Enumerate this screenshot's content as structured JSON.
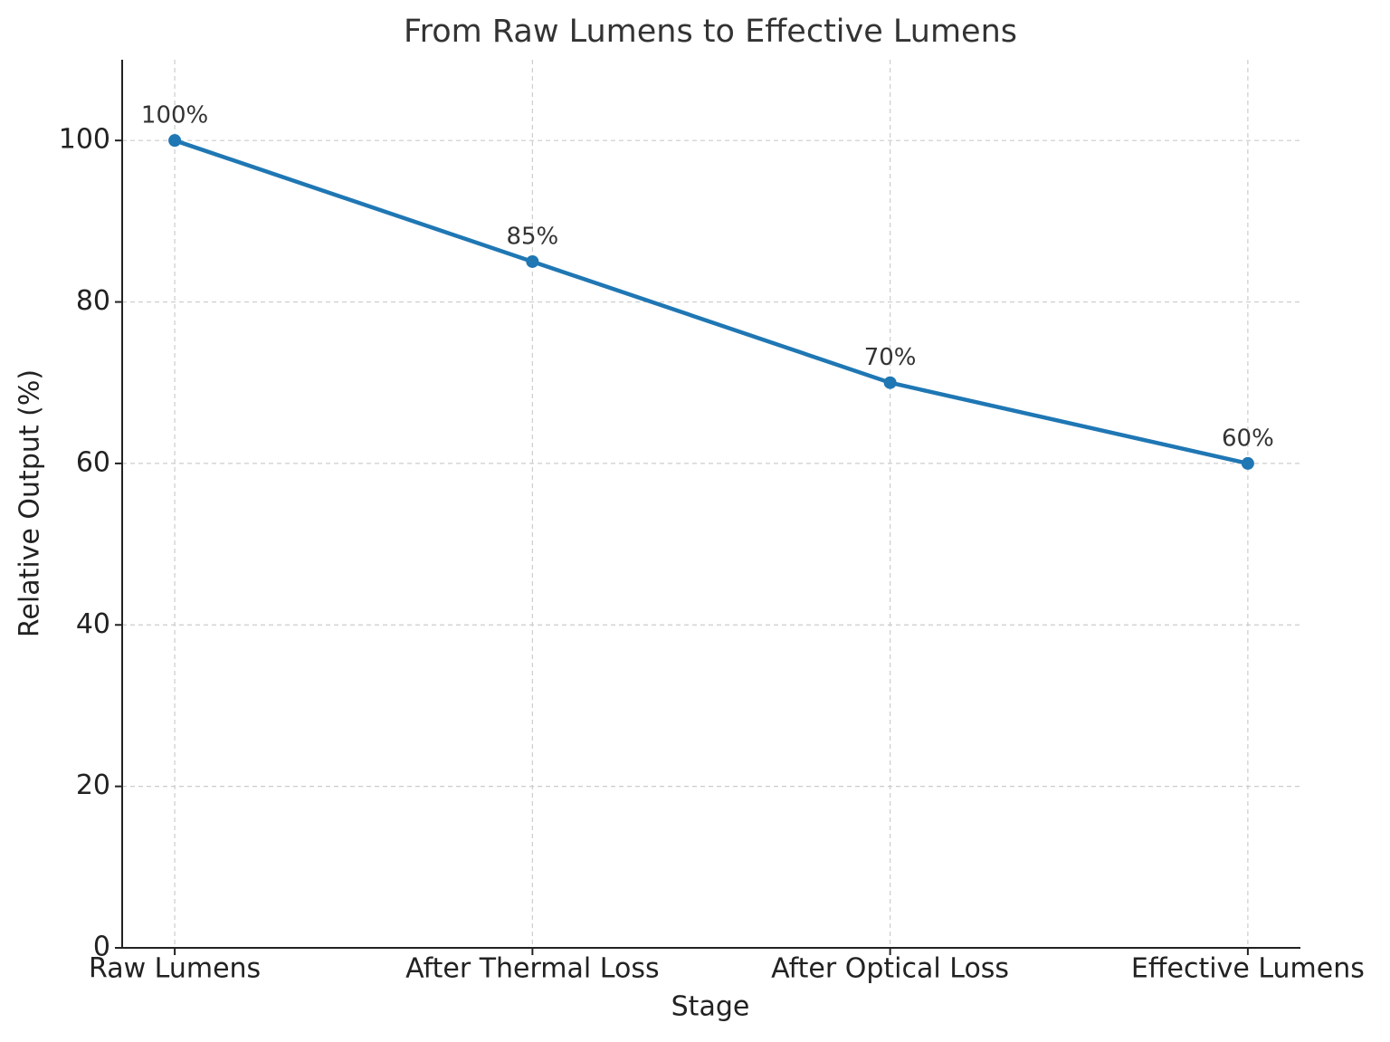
{
  "chart_data": {
    "type": "line",
    "title": "From Raw Lumens to Effective Lumens",
    "x_label": "Stage",
    "y_label": "Relative Output (%)",
    "categories": [
      "Raw Lumens",
      "After Thermal Loss",
      "After Optical Loss",
      "Effective Lumens"
    ],
    "series": [
      {
        "name": "Relative Output",
        "color": "#1f77b4",
        "values": [
          100,
          85,
          70,
          60
        ],
        "value_labels": [
          "100%",
          "85%",
          "70%",
          "60%"
        ]
      }
    ],
    "ylim": [
      0,
      110
    ],
    "yticks": [
      0,
      20,
      40,
      60,
      80,
      100
    ],
    "grid": true
  }
}
